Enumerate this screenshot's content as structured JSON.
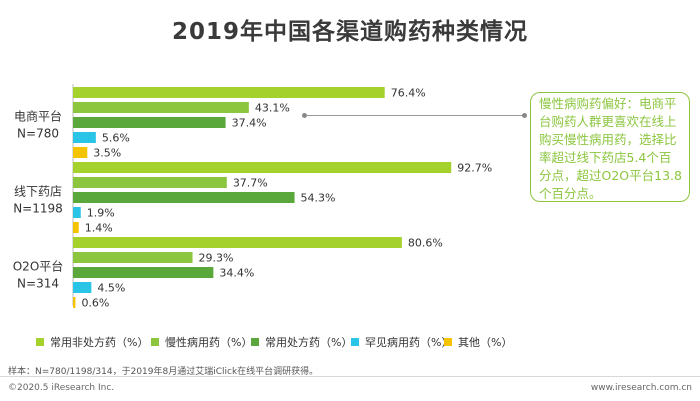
{
  "chart_data": {
    "type": "bar",
    "orientation": "horizontal",
    "title": "2019年中国各渠道购药种类情况",
    "categories": [
      {
        "lines": [
          "电商平台",
          "N=780"
        ]
      },
      {
        "lines": [
          "线下药店",
          "N=1198"
        ]
      },
      {
        "lines": [
          "O2O平台",
          "N=314"
        ]
      }
    ],
    "series": [
      {
        "name": "常用非处方药（%）",
        "color": "#a5d12d",
        "values": [
          76.4,
          92.7,
          80.6
        ],
        "labels": [
          "76.4%",
          "92.7%",
          "80.6%"
        ]
      },
      {
        "name": "慢性病用药（%）",
        "color": "#8cc63f",
        "values": [
          43.1,
          37.7,
          29.3
        ],
        "labels": [
          "43.1%",
          "37.7%",
          "29.3%"
        ]
      },
      {
        "name": "常用处方药（%）",
        "color": "#5aa83c",
        "values": [
          37.4,
          54.3,
          34.4
        ],
        "labels": [
          "37.4%",
          "54.3%",
          "34.4%"
        ]
      },
      {
        "name": "罕见病用药（%）",
        "color": "#29c4e6",
        "values": [
          5.6,
          1.9,
          4.5
        ],
        "labels": [
          "5.6%",
          "1.9%",
          "4.5%"
        ]
      },
      {
        "name": "其他（%）",
        "color": "#f5c400",
        "values": [
          3.5,
          1.4,
          0.6
        ],
        "labels": [
          "3.5%",
          "1.4%",
          "0.6%"
        ]
      }
    ],
    "xlim": [
      0,
      100
    ],
    "grid": false,
    "legend_position": "bottom"
  },
  "annotation": {
    "text": "慢性病购药偏好：电商平台购药人群更喜欢在线上购买慢性病用药，选择比率超过线下药店5.4个百分点，超过O2O平台13.8个百分点。"
  },
  "footer": {
    "note": "样本：N=780/1198/314，于2019年8月通过艾瑞iClick在线平台调研获得。",
    "copyright": "©2020.5 iResearch Inc.",
    "website": "www.iresearch.com.cn"
  }
}
